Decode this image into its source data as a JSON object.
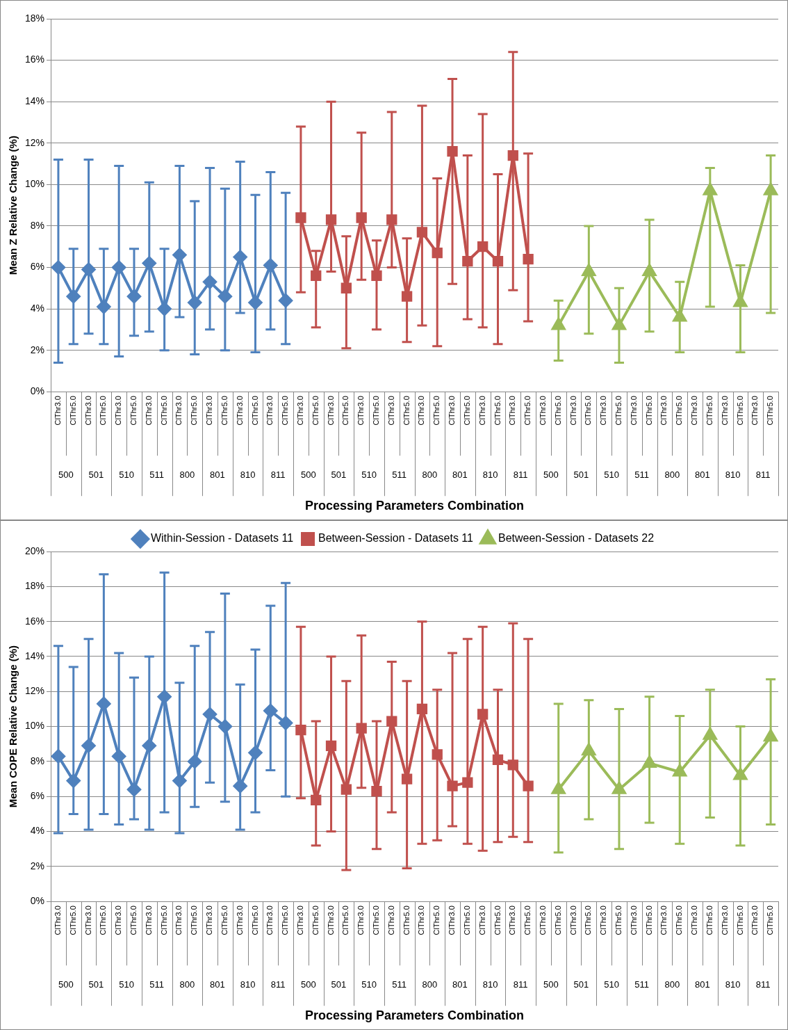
{
  "chart_data": [
    {
      "type": "line",
      "xlabel": "Processing Parameters Combination",
      "ylabel": "Mean Z Relative Change (%)",
      "grid": "y",
      "legend": false,
      "categories": [
        "ClThr3.0",
        "ClThr5.0",
        "ClThr3.0",
        "ClThr5.0",
        "ClThr3.0",
        "ClThr5.0",
        "ClThr3.0",
        "ClThr5.0",
        "ClThr3.0",
        "ClThr5.0",
        "ClThr3.0",
        "ClThr5.0",
        "ClThr3.0",
        "ClThr5.0",
        "ClThr3.0",
        "ClThr5.0",
        "ClThr3.0",
        "ClThr5.0",
        "ClThr3.0",
        "ClThr5.0",
        "ClThr3.0",
        "ClThr5.0",
        "ClThr3.0",
        "ClThr5.0",
        "ClThr3.0",
        "ClThr5.0",
        "ClThr3.0",
        "ClThr5.0",
        "ClThr3.0",
        "ClThr5.0",
        "ClThr3.0",
        "ClThr5.0",
        "ClThr3.0",
        "ClThr5.0",
        "ClThr3.0",
        "ClThr5.0",
        "ClThr3.0",
        "ClThr5.0",
        "ClThr3.0",
        "ClThr5.0",
        "ClThr3.0",
        "ClThr5.0",
        "ClThr3.0",
        "ClThr5.0",
        "ClThr3.0",
        "ClThr5.0",
        "ClThr3.0",
        "ClThr5.0"
      ],
      "annotations": [
        "500",
        "501",
        "510",
        "511",
        "800",
        "801",
        "810",
        "811",
        "500",
        "501",
        "510",
        "511",
        "800",
        "801",
        "810",
        "811",
        "500",
        "501",
        "510",
        "511",
        "800",
        "801",
        "810",
        "811"
      ],
      "ylim": [
        0,
        18
      ],
      "yticks": [
        {
          "value": 0,
          "label": "0%"
        },
        {
          "value": 2,
          "label": "2%"
        },
        {
          "value": 4,
          "label": "4%"
        },
        {
          "value": 6,
          "label": "6%"
        },
        {
          "value": 8,
          "label": "8%"
        },
        {
          "value": 10,
          "label": "10%"
        },
        {
          "value": 12,
          "label": "12%"
        },
        {
          "value": 14,
          "label": "14%"
        },
        {
          "value": 16,
          "label": "16%"
        },
        {
          "value": 18,
          "label": "18%"
        }
      ],
      "series": [
        {
          "color": "#4f81bd",
          "marker": "diamond",
          "values": [
            6.0,
            4.6,
            5.9,
            4.1,
            6.0,
            4.6,
            6.2,
            4.0,
            6.6,
            4.3,
            5.3,
            4.6,
            6.5,
            4.3,
            6.1,
            4.4,
            null,
            null,
            null,
            null,
            null,
            null,
            null,
            null,
            null,
            null,
            null,
            null,
            null,
            null,
            null,
            null,
            null,
            null,
            null,
            null,
            null,
            null,
            null,
            null,
            null,
            null,
            null,
            null,
            null,
            null,
            null,
            null
          ],
          "errors": [
            [
              1.4,
              11.2
            ],
            [
              2.3,
              6.9
            ],
            [
              2.8,
              11.2
            ],
            [
              2.3,
              6.9
            ],
            [
              1.7,
              10.9
            ],
            [
              2.7,
              6.9
            ],
            [
              2.9,
              10.1
            ],
            [
              2.0,
              6.9
            ],
            [
              3.6,
              10.9
            ],
            [
              1.8,
              9.2
            ],
            [
              3.0,
              10.8
            ],
            [
              2.0,
              9.8
            ],
            [
              3.8,
              11.1
            ],
            [
              1.9,
              9.5
            ],
            [
              3.0,
              10.6
            ],
            [
              2.3,
              9.6
            ],
            null,
            null,
            null,
            null,
            null,
            null,
            null,
            null,
            null,
            null,
            null,
            null,
            null,
            null,
            null,
            null,
            null,
            null,
            null,
            null,
            null,
            null,
            null,
            null,
            null,
            null,
            null,
            null,
            null,
            null,
            null,
            null
          ]
        },
        {
          "color": "#c0504d",
          "marker": "square",
          "values": [
            null,
            null,
            null,
            null,
            null,
            null,
            null,
            null,
            null,
            null,
            null,
            null,
            null,
            null,
            null,
            null,
            8.4,
            5.6,
            8.3,
            5.0,
            8.4,
            5.6,
            8.3,
            4.6,
            7.7,
            6.7,
            11.6,
            6.3,
            7.0,
            6.3,
            11.4,
            6.4,
            null,
            null,
            null,
            null,
            null,
            null,
            null,
            null,
            null,
            null,
            null,
            null,
            null,
            null,
            null,
            null
          ],
          "errors": [
            null,
            null,
            null,
            null,
            null,
            null,
            null,
            null,
            null,
            null,
            null,
            null,
            null,
            null,
            null,
            null,
            [
              4.8,
              12.8
            ],
            [
              3.1,
              6.8
            ],
            [
              5.8,
              14.0
            ],
            [
              2.1,
              7.5
            ],
            [
              5.4,
              12.5
            ],
            [
              3.0,
              7.3
            ],
            [
              6.0,
              13.5
            ],
            [
              2.4,
              7.4
            ],
            [
              3.2,
              13.8
            ],
            [
              2.2,
              10.3
            ],
            [
              5.2,
              15.1
            ],
            [
              3.5,
              11.4
            ],
            [
              3.1,
              13.4
            ],
            [
              2.3,
              10.5
            ],
            [
              4.9,
              16.4
            ],
            [
              3.4,
              11.5
            ],
            null,
            null,
            null,
            null,
            null,
            null,
            null,
            null,
            null,
            null,
            null,
            null,
            null,
            null,
            null,
            null
          ]
        },
        {
          "color": "#9bbb59",
          "marker": "triangle",
          "values": [
            null,
            null,
            null,
            null,
            null,
            null,
            null,
            null,
            null,
            null,
            null,
            null,
            null,
            null,
            null,
            null,
            null,
            null,
            null,
            null,
            null,
            null,
            null,
            null,
            null,
            null,
            null,
            null,
            null,
            null,
            null,
            null,
            null,
            3.2,
            null,
            5.8,
            null,
            3.2,
            null,
            5.8,
            null,
            3.6,
            null,
            9.7,
            null,
            4.3,
            null,
            9.7
          ],
          "errors": [
            null,
            null,
            null,
            null,
            null,
            null,
            null,
            null,
            null,
            null,
            null,
            null,
            null,
            null,
            null,
            null,
            null,
            null,
            null,
            null,
            null,
            null,
            null,
            null,
            null,
            null,
            null,
            null,
            null,
            null,
            null,
            null,
            null,
            [
              1.5,
              4.4
            ],
            null,
            [
              2.8,
              8.0
            ],
            null,
            [
              1.4,
              5.0
            ],
            null,
            [
              2.9,
              8.3
            ],
            null,
            [
              1.9,
              5.3
            ],
            null,
            [
              4.1,
              10.8
            ],
            null,
            [
              1.9,
              6.1
            ],
            null,
            [
              3.8,
              11.4
            ]
          ]
        }
      ]
    },
    {
      "type": "line",
      "xlabel": "Processing Parameters Combination",
      "ylabel": "Mean COPE Relative Change (%)",
      "grid": "y",
      "legend": "top",
      "categories": [
        "ClThr3.0",
        "ClThr5.0",
        "ClThr3.0",
        "ClThr5.0",
        "ClThr3.0",
        "ClThr5.0",
        "ClThr3.0",
        "ClThr5.0",
        "ClThr3.0",
        "ClThr5.0",
        "ClThr3.0",
        "ClThr5.0",
        "ClThr3.0",
        "ClThr5.0",
        "ClThr3.0",
        "ClThr5.0",
        "ClThr3.0",
        "ClThr5.0",
        "ClThr3.0",
        "ClThr5.0",
        "ClThr3.0",
        "ClThr5.0",
        "ClThr3.0",
        "ClThr5.0",
        "ClThr3.0",
        "ClThr5.0",
        "ClThr3.0",
        "ClThr5.0",
        "ClThr3.0",
        "ClThr5.0",
        "ClThr3.0",
        "ClThr5.0",
        "ClThr3.0",
        "ClThr5.0",
        "ClThr3.0",
        "ClThr5.0",
        "ClThr3.0",
        "ClThr5.0",
        "ClThr3.0",
        "ClThr5.0",
        "ClThr3.0",
        "ClThr5.0",
        "ClThr3.0",
        "ClThr5.0",
        "ClThr3.0",
        "ClThr5.0",
        "ClThr3.0",
        "ClThr5.0"
      ],
      "annotations": [
        "500",
        "501",
        "510",
        "511",
        "800",
        "801",
        "810",
        "811",
        "500",
        "501",
        "510",
        "511",
        "800",
        "801",
        "810",
        "811",
        "500",
        "501",
        "510",
        "511",
        "800",
        "801",
        "810",
        "811"
      ],
      "ylim": [
        0,
        20
      ],
      "yticks": [
        {
          "value": 0,
          "label": "0%"
        },
        {
          "value": 2,
          "label": "2%"
        },
        {
          "value": 4,
          "label": "4%"
        },
        {
          "value": 6,
          "label": "6%"
        },
        {
          "value": 8,
          "label": "8%"
        },
        {
          "value": 10,
          "label": "10%"
        },
        {
          "value": 12,
          "label": "12%"
        },
        {
          "value": 14,
          "label": "14%"
        },
        {
          "value": 16,
          "label": "16%"
        },
        {
          "value": 18,
          "label": "18%"
        },
        {
          "value": 20,
          "label": "20%"
        }
      ],
      "series": [
        {
          "name": "Within-Session - Datasets 11",
          "color": "#4f81bd",
          "marker": "diamond",
          "values": [
            8.3,
            6.9,
            8.9,
            11.3,
            8.3,
            6.4,
            8.9,
            11.7,
            6.9,
            8.0,
            10.7,
            10.0,
            6.6,
            8.5,
            10.9,
            10.2,
            null,
            null,
            null,
            null,
            null,
            null,
            null,
            null,
            null,
            null,
            null,
            null,
            null,
            null,
            null,
            null,
            null,
            null,
            null,
            null,
            null,
            null,
            null,
            null,
            null,
            null,
            null,
            null,
            null,
            null,
            null,
            null
          ],
          "errors": [
            [
              3.9,
              14.6
            ],
            [
              5.0,
              13.4
            ],
            [
              4.1,
              15.0
            ],
            [
              5.0,
              18.7
            ],
            [
              4.4,
              14.2
            ],
            [
              4.7,
              12.8
            ],
            [
              4.1,
              14.0
            ],
            [
              5.1,
              18.8
            ],
            [
              3.9,
              12.5
            ],
            [
              5.4,
              14.6
            ],
            [
              6.8,
              15.4
            ],
            [
              5.7,
              17.6
            ],
            [
              4.1,
              12.4
            ],
            [
              5.1,
              14.4
            ],
            [
              7.5,
              16.9
            ],
            [
              6.0,
              18.2
            ],
            null,
            null,
            null,
            null,
            null,
            null,
            null,
            null,
            null,
            null,
            null,
            null,
            null,
            null,
            null,
            null,
            null,
            null,
            null,
            null,
            null,
            null,
            null,
            null,
            null,
            null,
            null,
            null,
            null,
            null,
            null,
            null
          ]
        },
        {
          "name": "Between-Session - Datasets 11",
          "color": "#c0504d",
          "marker": "square",
          "values": [
            null,
            null,
            null,
            null,
            null,
            null,
            null,
            null,
            null,
            null,
            null,
            null,
            null,
            null,
            null,
            null,
            9.8,
            5.8,
            8.9,
            6.4,
            9.9,
            6.3,
            10.3,
            7.0,
            11.0,
            8.4,
            6.6,
            6.8,
            10.7,
            8.1,
            7.8,
            6.6,
            null,
            null,
            null,
            null,
            null,
            null,
            null,
            null,
            null,
            null,
            null,
            null,
            null,
            null,
            null,
            null
          ],
          "errors": [
            null,
            null,
            null,
            null,
            null,
            null,
            null,
            null,
            null,
            null,
            null,
            null,
            null,
            null,
            null,
            null,
            [
              5.9,
              15.7
            ],
            [
              3.2,
              10.3
            ],
            [
              4.0,
              14.0
            ],
            [
              1.8,
              12.6
            ],
            [
              6.5,
              15.2
            ],
            [
              3.0,
              10.3
            ],
            [
              5.1,
              13.7
            ],
            [
              1.9,
              12.6
            ],
            [
              3.3,
              16.0
            ],
            [
              3.5,
              12.1
            ],
            [
              4.3,
              14.2
            ],
            [
              3.3,
              15.0
            ],
            [
              2.9,
              15.7
            ],
            [
              3.4,
              12.1
            ],
            [
              3.7,
              15.9
            ],
            [
              3.4,
              15.0
            ],
            null,
            null,
            null,
            null,
            null,
            null,
            null,
            null,
            null,
            null,
            null,
            null,
            null,
            null,
            null,
            null
          ]
        },
        {
          "name": "Between-Session - Datasets 22",
          "color": "#9bbb59",
          "marker": "triangle",
          "values": [
            null,
            null,
            null,
            null,
            null,
            null,
            null,
            null,
            null,
            null,
            null,
            null,
            null,
            null,
            null,
            null,
            null,
            null,
            null,
            null,
            null,
            null,
            null,
            null,
            null,
            null,
            null,
            null,
            null,
            null,
            null,
            null,
            null,
            6.4,
            null,
            8.6,
            null,
            6.4,
            null,
            7.9,
            null,
            7.4,
            null,
            9.5,
            null,
            7.2,
            null,
            9.4
          ],
          "errors": [
            null,
            null,
            null,
            null,
            null,
            null,
            null,
            null,
            null,
            null,
            null,
            null,
            null,
            null,
            null,
            null,
            null,
            null,
            null,
            null,
            null,
            null,
            null,
            null,
            null,
            null,
            null,
            null,
            null,
            null,
            null,
            null,
            null,
            [
              2.8,
              11.3
            ],
            null,
            [
              4.7,
              11.5
            ],
            null,
            [
              3.0,
              11.0
            ],
            null,
            [
              4.5,
              11.7
            ],
            null,
            [
              3.3,
              10.6
            ],
            null,
            [
              4.8,
              12.1
            ],
            null,
            [
              3.2,
              10.0
            ],
            null,
            [
              4.4,
              12.7
            ]
          ]
        }
      ]
    }
  ]
}
